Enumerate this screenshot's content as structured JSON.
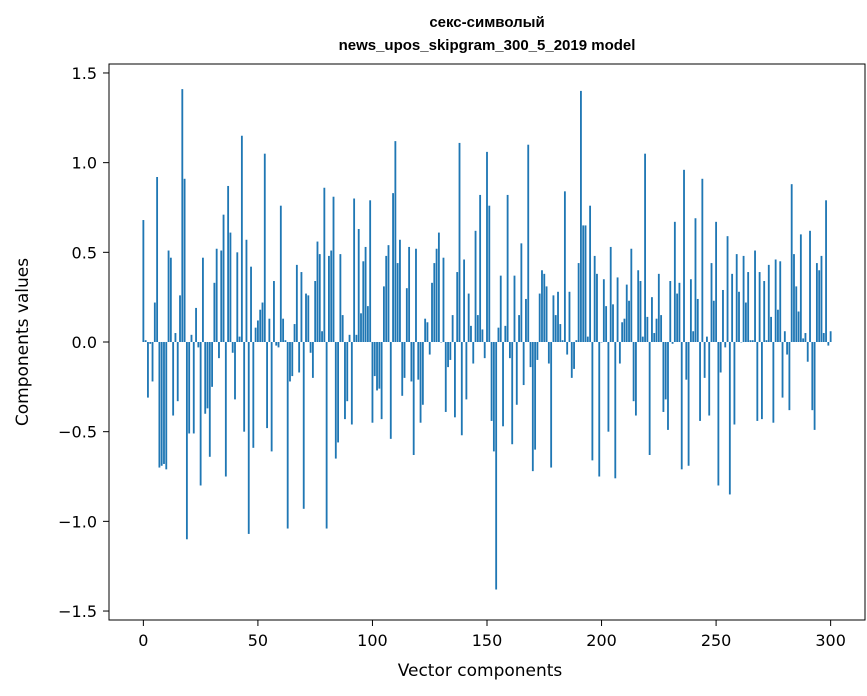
{
  "chart_data": {
    "type": "bar",
    "title_line1": "секс-символый",
    "title_line2": "news_upos_skipgram_300_5_2019 model",
    "xlabel": "Vector components",
    "ylabel": "Components values",
    "xlim": [
      -15,
      315
    ],
    "ylim": [
      -1.55,
      1.55
    ],
    "xticks": [
      0,
      50,
      100,
      150,
      200,
      250,
      300
    ],
    "yticks": [
      -1.5,
      -1.0,
      -0.5,
      0.0,
      0.5,
      1.0,
      1.5
    ],
    "ytick_labels": [
      "−1.5",
      "−1.0",
      "−0.5",
      "0.0",
      "0.5",
      "1.0",
      "1.5"
    ],
    "bar_color": "#1f77b4",
    "values": [
      0.68,
      0.01,
      -0.31,
      -0.01,
      -0.22,
      0.22,
      0.92,
      -0.7,
      -0.69,
      -0.68,
      -0.71,
      0.51,
      0.47,
      -0.41,
      0.05,
      -0.33,
      0.26,
      1.41,
      0.91,
      -1.1,
      -0.51,
      0.04,
      -0.51,
      0.19,
      -0.03,
      -0.8,
      0.47,
      -0.4,
      -0.37,
      -0.64,
      -0.25,
      0.33,
      0.52,
      -0.09,
      0.51,
      0.71,
      -0.75,
      0.87,
      0.61,
      -0.06,
      -0.32,
      0.5,
      0.03,
      1.15,
      -0.5,
      0.57,
      -1.07,
      0.42,
      -0.59,
      0.08,
      0.12,
      0.18,
      0.22,
      1.05,
      -0.48,
      0.13,
      -0.61,
      0.34,
      -0.02,
      -0.03,
      0.76,
      0.13,
      0.01,
      -1.04,
      -0.22,
      -0.19,
      0.1,
      0.43,
      -0.17,
      0.39,
      -0.93,
      0.27,
      0.26,
      -0.06,
      -0.2,
      0.34,
      0.56,
      0.49,
      0.06,
      0.86,
      -1.04,
      0.48,
      0.51,
      0.81,
      -0.65,
      -0.56,
      0.49,
      0.15,
      -0.43,
      -0.33,
      0.04,
      -0.46,
      0.8,
      0.04,
      0.63,
      0.16,
      0.45,
      0.53,
      0.2,
      0.79,
      -0.45,
      -0.19,
      -0.27,
      -0.26,
      -0.43,
      0.31,
      0.48,
      0.54,
      -0.54,
      0.83,
      1.12,
      0.44,
      0.57,
      -0.3,
      -0.2,
      0.3,
      0.53,
      -0.22,
      -0.63,
      0.52,
      -0.21,
      -0.45,
      -0.35,
      0.13,
      0.11,
      -0.07,
      0.33,
      0.44,
      0.52,
      0.61,
      0.0,
      0.47,
      -0.39,
      -0.14,
      -0.1,
      0.15,
      -0.42,
      0.39,
      1.11,
      -0.52,
      0.46,
      -0.32,
      0.27,
      0.09,
      -0.12,
      0.62,
      0.15,
      0.82,
      0.07,
      -0.09,
      1.06,
      0.76,
      -0.44,
      -0.61,
      -1.38,
      0.08,
      0.37,
      -0.47,
      0.09,
      0.82,
      -0.09,
      -0.57,
      0.37,
      -0.35,
      0.15,
      0.55,
      -0.24,
      0.24,
      1.1,
      -0.14,
      -0.72,
      -0.6,
      -0.1,
      0.27,
      0.4,
      0.38,
      0.31,
      -0.12,
      -0.7,
      0.26,
      0.15,
      0.28,
      0.1,
      0.01,
      0.84,
      -0.07,
      0.28,
      -0.2,
      -0.15,
      0.01,
      0.44,
      1.4,
      0.65,
      0.65,
      0.03,
      0.76,
      -0.66,
      0.48,
      0.38,
      -0.75,
      0.0,
      0.35,
      0.2,
      -0.5,
      0.53,
      0.21,
      -0.76,
      0.36,
      -0.12,
      0.11,
      0.13,
      0.32,
      0.23,
      0.52,
      -0.33,
      -0.41,
      0.4,
      0.34,
      0.03,
      1.05,
      0.14,
      -0.63,
      0.25,
      0.05,
      0.13,
      0.38,
      0.15,
      -0.39,
      -0.32,
      -0.49,
      0.34,
      -0.01,
      0.67,
      0.27,
      0.33,
      -0.71,
      0.96,
      -0.21,
      -0.69,
      0.35,
      0.06,
      0.69,
      0.24,
      -0.44,
      0.91,
      -0.2,
      0.03,
      -0.41,
      0.44,
      0.23,
      0.67,
      -0.8,
      -0.17,
      0.29,
      -0.03,
      0.59,
      -0.85,
      0.38,
      -0.46,
      0.49,
      0.28,
      0.0,
      0.48,
      0.22,
      0.39,
      0.01,
      0.01,
      0.51,
      -0.44,
      0.39,
      -0.43,
      0.34,
      0.01,
      0.43,
      0.14,
      -0.45,
      0.46,
      0.18,
      0.45,
      -0.31,
      0.06,
      -0.07,
      -0.38,
      0.88,
      0.49,
      0.31,
      0.17,
      0.6,
      0.02,
      0.05,
      -0.11,
      0.62,
      -0.38,
      -0.49,
      0.44,
      0.4,
      0.48,
      0.05,
      0.79,
      -0.02,
      0.06
    ]
  }
}
